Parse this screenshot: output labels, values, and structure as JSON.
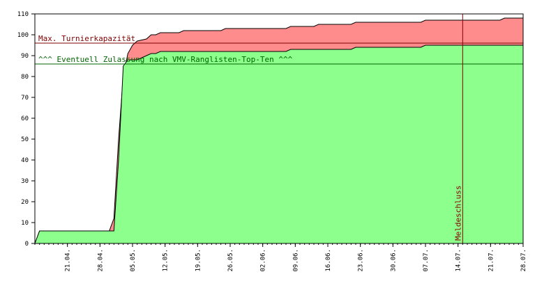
{
  "chart_data": {
    "type": "area",
    "ylim": [
      0,
      110
    ],
    "yticks": [
      0,
      10,
      20,
      30,
      40,
      50,
      60,
      70,
      80,
      90,
      100,
      110
    ],
    "xlim": [
      "2024-04-14",
      "2024-07-28"
    ],
    "xticks": [
      "21.04.",
      "28.04.",
      "05.05.",
      "12.05.",
      "19.05.",
      "26.05.",
      "02.06.",
      "09.06.",
      "16.06.",
      "23.06.",
      "30.06.",
      "07.07.",
      "14.07.",
      "21.07.",
      "28.07."
    ],
    "xtick_dates": [
      "2024-04-21",
      "2024-04-28",
      "2024-05-05",
      "2024-05-12",
      "2024-05-19",
      "2024-05-26",
      "2024-06-02",
      "2024-06-09",
      "2024-06-16",
      "2024-06-23",
      "2024-06-30",
      "2024-07-07",
      "2024-07-14",
      "2024-07-21",
      "2024-07-28"
    ],
    "grid": false,
    "series": [
      {
        "color": "#ff8c8c",
        "points": [
          [
            "2024-04-14",
            0
          ],
          [
            "2024-04-15",
            6
          ],
          [
            "2024-04-30",
            6
          ],
          [
            "2024-05-01",
            12
          ],
          [
            "2024-05-02",
            50
          ],
          [
            "2024-05-03",
            80
          ],
          [
            "2024-05-04",
            91
          ],
          [
            "2024-05-05",
            95
          ],
          [
            "2024-05-06",
            97
          ],
          [
            "2024-05-08",
            98
          ],
          [
            "2024-05-09",
            100
          ],
          [
            "2024-05-10",
            100
          ],
          [
            "2024-05-11",
            101
          ],
          [
            "2024-05-15",
            101
          ],
          [
            "2024-05-16",
            102
          ],
          [
            "2024-05-24",
            102
          ],
          [
            "2024-05-25",
            103
          ],
          [
            "2024-06-07",
            103
          ],
          [
            "2024-06-08",
            104
          ],
          [
            "2024-06-13",
            104
          ],
          [
            "2024-06-14",
            105
          ],
          [
            "2024-06-21",
            105
          ],
          [
            "2024-06-22",
            106
          ],
          [
            "2024-07-06",
            106
          ],
          [
            "2024-07-07",
            107
          ],
          [
            "2024-07-23",
            107
          ],
          [
            "2024-07-24",
            108
          ],
          [
            "2024-07-28",
            108
          ]
        ]
      },
      {
        "color": "#8cff8c",
        "points": [
          [
            "2024-04-14",
            0
          ],
          [
            "2024-04-15",
            6
          ],
          [
            "2024-04-30",
            6
          ],
          [
            "2024-05-01",
            6
          ],
          [
            "2024-05-02",
            40
          ],
          [
            "2024-05-03",
            85
          ],
          [
            "2024-05-04",
            88
          ],
          [
            "2024-05-06",
            88
          ],
          [
            "2024-05-07",
            89
          ],
          [
            "2024-05-08",
            90
          ],
          [
            "2024-05-09",
            91
          ],
          [
            "2024-05-10",
            91
          ],
          [
            "2024-05-11",
            92
          ],
          [
            "2024-06-07",
            92
          ],
          [
            "2024-06-08",
            93
          ],
          [
            "2024-06-21",
            93
          ],
          [
            "2024-06-22",
            94
          ],
          [
            "2024-07-06",
            94
          ],
          [
            "2024-07-07",
            95
          ],
          [
            "2024-07-28",
            95
          ]
        ]
      }
    ],
    "reference_lines": [
      {
        "y": 96,
        "label": "Max. Turnierkapazität",
        "color": "#800000"
      },
      {
        "y": 86,
        "label": "^^^ Eventuell Zulassung nach VMV-Ranglisten-Top-Ten ^^^",
        "color": "#006400"
      }
    ],
    "vertical_markers": [
      {
        "x": "2024-07-15",
        "label": "Meldeschluss",
        "color": "#800000"
      }
    ]
  },
  "colors": {
    "background": "#ffffff",
    "axis": "#000000",
    "outline": "#000000"
  }
}
